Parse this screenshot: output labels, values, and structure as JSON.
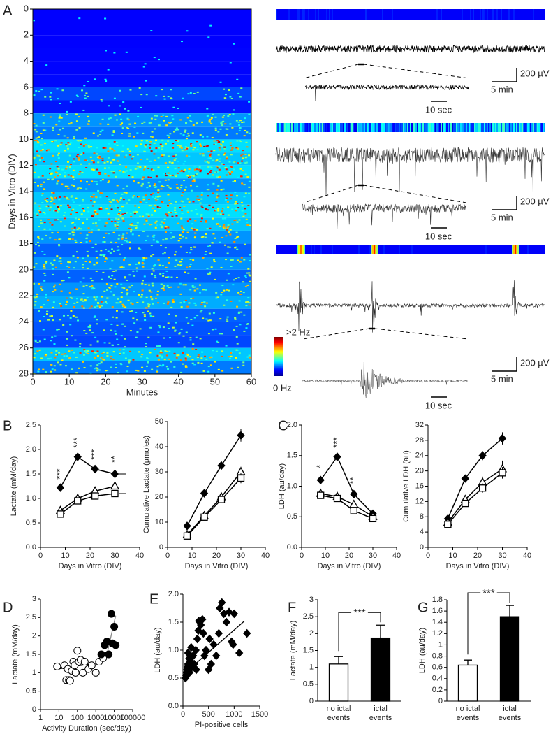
{
  "chart_data": [
    {
      "type": "heatmap",
      "panel": "A",
      "xlabel": "Minutes",
      "ylabel": "Days in Vitro (DIV)",
      "xlim": [
        0,
        60
      ],
      "xticks": [
        0,
        10,
        20,
        30,
        40,
        50,
        60
      ],
      "ylim": [
        0,
        28
      ],
      "yticks": [
        0,
        2,
        4,
        6,
        8,
        10,
        12,
        14,
        16,
        18,
        20,
        22,
        24,
        26,
        28
      ],
      "y_reversed": true,
      "ybins": [
        0,
        1,
        2,
        3,
        4,
        5,
        6,
        7,
        8,
        9,
        10,
        11,
        12,
        13,
        14,
        15,
        16,
        17,
        18,
        19,
        20,
        21,
        22,
        23,
        24,
        25,
        26,
        27,
        28
      ],
      "values": [
        0.02,
        0.02,
        0.02,
        0.03,
        0.03,
        0.05,
        0.3,
        0.1,
        0.6,
        0.5,
        0.9,
        0.8,
        0.9,
        0.6,
        0.8,
        0.9,
        0.8,
        0.6,
        0.4,
        0.6,
        0.4,
        0.6,
        0.7,
        0.4,
        0.35,
        0.3,
        0.8,
        0.5
      ],
      "clim": [
        0,
        2
      ],
      "colorbar_labels": [
        ">2 Hz",
        "0 Hz"
      ]
    },
    {
      "type": "line",
      "panel": "B",
      "xlabel": "Days in Vitro (DIV)",
      "ylabel": "Lactate (mM/day)",
      "xlim": [
        0,
        40
      ],
      "xticks": [
        0,
        10,
        20,
        30,
        40
      ],
      "ylim": [
        0,
        2.5
      ],
      "yticks": [
        {
          "value": 0,
          "label": "0.0"
        },
        0.5,
        {
          "value": 1,
          "label": "1.0"
        },
        1.5,
        {
          "value": 2,
          "label": "2.0"
        },
        2.5
      ],
      "x": [
        8,
        15,
        22,
        30
      ],
      "series": [
        {
          "marker": "diamond",
          "color": "#000000",
          "values": [
            1.22,
            1.85,
            1.6,
            1.5
          ],
          "errors": [
            0.05,
            0.06,
            0.07,
            0.07
          ]
        },
        {
          "marker": "triangle",
          "color": "#000000",
          "values": [
            0.75,
            1.0,
            1.15,
            1.25
          ],
          "errors": [
            0.05,
            0.05,
            0.06,
            0.07
          ]
        },
        {
          "marker": "square",
          "color": "#000000",
          "values": [
            0.68,
            0.95,
            1.05,
            1.1
          ],
          "errors": [
            0.05,
            0.05,
            0.06,
            0.08
          ]
        }
      ],
      "annotations": [
        "***",
        "***",
        "***",
        "**"
      ]
    },
    {
      "type": "line",
      "xlabel": "Days in Vitro (DIV)",
      "ylabel": "Cumulative Lactate (µmoles)",
      "xlim": [
        0,
        40
      ],
      "xticks": [
        0,
        10,
        20,
        30,
        40
      ],
      "ylim": [
        0,
        50
      ],
      "yticks": [
        0,
        10,
        20,
        30,
        40,
        50
      ],
      "x": [
        8,
        15,
        22,
        30
      ],
      "series": [
        {
          "marker": "diamond",
          "color": "#000000",
          "values": [
            8.5,
            21.5,
            32.5,
            44.5
          ],
          "errors": [
            0.6,
            1.0,
            1.8,
            2.5
          ]
        },
        {
          "marker": "triangle",
          "color": "#000000",
          "values": [
            5,
            12.5,
            20,
            30
          ],
          "errors": [
            0.4,
            0.8,
            1.2,
            2.0
          ]
        },
        {
          "marker": "square",
          "color": "#000000",
          "values": [
            4.5,
            12,
            19,
            27.5
          ],
          "errors": [
            0.4,
            0.8,
            1.2,
            2.0
          ]
        }
      ]
    },
    {
      "type": "line",
      "panel": "C",
      "xlabel": "Days in Vitro (DIV)",
      "ylabel": "LDH (au/day)",
      "xlim": [
        0,
        40
      ],
      "xticks": [
        0,
        10,
        20,
        30,
        40
      ],
      "ylim": [
        0,
        2
      ],
      "yticks": [
        {
          "value": 0,
          "label": "0.0"
        },
        0.5,
        {
          "value": 1,
          "label": "1.0"
        },
        1.5,
        {
          "value": 2,
          "label": "2.0"
        }
      ],
      "x": [
        8,
        15,
        22,
        30
      ],
      "series": [
        {
          "marker": "diamond",
          "color": "#000000",
          "values": [
            1.1,
            1.48,
            0.87,
            0.55
          ],
          "errors": [
            0.04,
            0.05,
            0.04,
            0.03
          ]
        },
        {
          "marker": "triangle",
          "color": "#000000",
          "values": [
            0.88,
            0.83,
            0.7,
            0.5
          ],
          "errors": [
            0.05,
            0.05,
            0.05,
            0.04
          ]
        },
        {
          "marker": "square",
          "color": "#000000",
          "values": [
            0.85,
            0.8,
            0.6,
            0.47
          ],
          "errors": [
            0.05,
            0.05,
            0.05,
            0.04
          ]
        }
      ],
      "annotations": [
        "*",
        "***",
        "**",
        null
      ]
    },
    {
      "type": "line",
      "xlabel": "Days in Vitro (DIV)",
      "ylabel": "Cumulative LDH (au)",
      "xlim": [
        0,
        40
      ],
      "xticks": [
        0,
        10,
        20,
        30,
        40
      ],
      "ylim": [
        0,
        32
      ],
      "yticks": [
        0,
        4,
        8,
        12,
        16,
        20,
        24,
        28,
        32
      ],
      "x": [
        8,
        15,
        22,
        30
      ],
      "series": [
        {
          "marker": "diamond",
          "color": "#000000",
          "values": [
            7.5,
            18,
            24,
            28.5
          ],
          "errors": [
            0.5,
            1.0,
            1.2,
            1.6
          ]
        },
        {
          "marker": "triangle",
          "color": "#000000",
          "values": [
            6.5,
            12.5,
            17,
            20.5
          ],
          "errors": [
            0.5,
            0.9,
            1.5,
            2.2
          ]
        },
        {
          "marker": "square",
          "color": "#000000",
          "values": [
            6,
            11.5,
            15.5,
            19.5
          ],
          "errors": [
            0.5,
            0.8,
            1.2,
            1.5
          ]
        }
      ]
    },
    {
      "type": "scatter",
      "panel": "D",
      "xlabel": "Activity Duration (sec/day)",
      "ylabel": "Lactate (mM/day)",
      "xlog": true,
      "xlim": [
        1,
        100000
      ],
      "xticks": [
        1,
        10,
        100,
        1000,
        10000,
        100000
      ],
      "ylim": [
        0,
        3
      ],
      "yticks": [
        0,
        0.5,
        1,
        1.5,
        2,
        2.5,
        3
      ],
      "series": [
        {
          "marker": "circle",
          "color": "#ffffff",
          "x": [
            8,
            20,
            25,
            30,
            35,
            40,
            50,
            60,
            70,
            80,
            100,
            120,
            150,
            200,
            250,
            400,
            600,
            1000,
            1500,
            2500
          ],
          "y": [
            1.17,
            1.2,
            0.8,
            1.1,
            0.8,
            0.78,
            1.05,
            1.3,
            1.2,
            1.0,
            1.6,
            1.3,
            1.35,
            1.0,
            1.3,
            1.1,
            1.2,
            1.0,
            1.3,
            1.4
          ]
        },
        {
          "marker": "circle",
          "color": "#000000",
          "x": [
            2000,
            3000,
            4000,
            5000,
            7000,
            8000,
            10000,
            12000
          ],
          "y": [
            1.5,
            1.75,
            1.85,
            1.5,
            2.6,
            1.8,
            2.25,
            1.75
          ]
        }
      ],
      "fits": [
        {
          "color": "#000000",
          "x": [
            8,
            2000
          ],
          "y": [
            1.1,
            1.28
          ]
        },
        {
          "color": "#888888",
          "x": [
            4000,
            12000
          ],
          "y": [
            1.5,
            2.55
          ]
        }
      ]
    },
    {
      "type": "scatter",
      "panel": "E",
      "xlabel": "PI-positive cells",
      "ylabel": "LDH (au/day)",
      "xlim": [
        0,
        1500
      ],
      "xticks": [
        0,
        500,
        1000,
        1500
      ],
      "ylim": [
        0,
        2
      ],
      "yticks": [
        {
          "value": 0,
          "label": "0.0"
        },
        0.5,
        {
          "value": 1,
          "label": "1.0"
        },
        1.5,
        {
          "value": 2,
          "label": "2.0"
        }
      ],
      "series": [
        {
          "marker": "diamond",
          "color": "#000000",
          "x": [
            50,
            60,
            70,
            80,
            90,
            100,
            100,
            120,
            130,
            150,
            160,
            180,
            200,
            220,
            250,
            260,
            280,
            300,
            310,
            350,
            380,
            400,
            420,
            450,
            500,
            520,
            550,
            600,
            650,
            700,
            720,
            760,
            800,
            850,
            900,
            950,
            980,
            1000,
            1100,
            1250
          ],
          "y": [
            0.5,
            0.55,
            0.6,
            0.65,
            0.7,
            0.75,
            0.95,
            0.85,
            0.6,
            0.8,
            1.05,
            0.7,
            0.9,
            0.75,
            1.0,
            0.65,
            1.2,
            1.35,
            1.52,
            1.45,
            1.55,
            1.3,
            0.9,
            1.0,
            0.65,
            1.2,
            0.75,
            1.1,
            0.9,
            1.3,
            1.75,
            1.85,
            1.65,
            1.5,
            1.68,
            1.15,
            1.1,
            1.65,
            0.95,
            1.3
          ]
        }
      ],
      "fits": [
        {
          "color": "#000000",
          "x": [
            50,
            1200
          ],
          "y": [
            0.6,
            1.52
          ]
        }
      ]
    },
    {
      "type": "bar",
      "panel": "F",
      "ylabel": "Lactate (mM/day)",
      "categories": [
        "no ictal events",
        "ictal events"
      ],
      "values": [
        1.1,
        1.87
      ],
      "errors": [
        0.22,
        0.38
      ],
      "colors": [
        "#ffffff",
        "#000000"
      ],
      "ylim": [
        0,
        3
      ],
      "yticks": [
        0,
        0.5,
        1,
        1.5,
        2,
        2.5,
        3
      ],
      "significance": "***"
    },
    {
      "type": "bar",
      "panel": "G",
      "ylabel": "LDH (au/day)",
      "categories": [
        "no ictal events",
        "ictal events"
      ],
      "values": [
        0.64,
        1.5
      ],
      "errors": [
        0.09,
        0.2
      ],
      "colors": [
        "#ffffff",
        "#000000"
      ],
      "ylim": [
        0,
        1.8
      ],
      "yticks": [
        0,
        0.2,
        0.4,
        0.6,
        0.8,
        1,
        1.2,
        1.4,
        1.6,
        1.8
      ],
      "significance": "***"
    }
  ],
  "recordings": [
    {
      "amplitude": "200 µV",
      "time": "5 min",
      "zoom_time": "10 sec"
    },
    {
      "amplitude": "200 µV",
      "time": "5 min",
      "zoom_time": "10 sec"
    },
    {
      "amplitude": "200 µV",
      "time": "5 min",
      "zoom_time": "10 sec"
    }
  ]
}
